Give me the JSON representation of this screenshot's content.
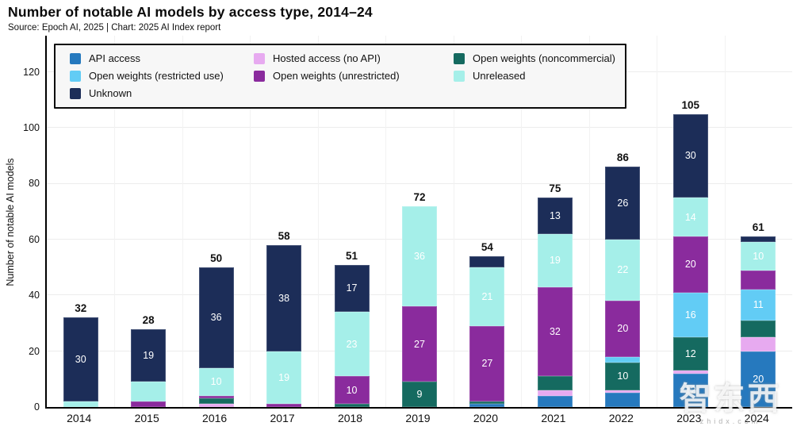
{
  "header": {
    "title": "Number of notable AI models by access type, 2014–24",
    "source": "Source: Epoch AI, 2025 | Chart: 2025 AI Index report"
  },
  "watermark": {
    "main": "智东西",
    "sub": "zhidx.com"
  },
  "chart_data": {
    "type": "bar",
    "variant": "stacked",
    "title": "Number of notable AI models by access type, 2014–24",
    "source": "Source: Epoch AI, 2025 | Chart: 2025 AI Index report",
    "ylabel": "Number of notable AI models",
    "xlabel": "",
    "ylim": [
      0,
      133
    ],
    "yticks": [
      0,
      20,
      40,
      60,
      80,
      100,
      120
    ],
    "grid": true,
    "legend_position": "top",
    "categories": [
      "2014",
      "2015",
      "2016",
      "2017",
      "2018",
      "2019",
      "2020",
      "2021",
      "2022",
      "2023",
      "2024"
    ],
    "series": [
      {
        "name": "API access",
        "color": "#2679be",
        "values": [
          0,
          0,
          0,
          0,
          0,
          0,
          1,
          4,
          5,
          12,
          20
        ]
      },
      {
        "name": "Hosted access (no API)",
        "color": "#e7aaf0",
        "values": [
          0,
          0,
          1,
          0,
          0,
          0,
          0,
          2,
          1,
          1,
          5
        ]
      },
      {
        "name": "Open weights (noncommercial)",
        "color": "#156a60",
        "values": [
          0,
          0,
          2,
          0,
          1,
          9,
          1,
          5,
          10,
          12,
          6
        ]
      },
      {
        "name": "Open weights (restricted use)",
        "color": "#62ccf5",
        "values": [
          0,
          0,
          0,
          0,
          0,
          0,
          0,
          0,
          2,
          16,
          11
        ]
      },
      {
        "name": "Open weights (unrestricted)",
        "color": "#8a2b9d",
        "values": [
          0,
          2,
          1,
          1,
          10,
          27,
          27,
          32,
          20,
          20,
          7
        ]
      },
      {
        "name": "Unreleased",
        "color": "#a5efe9",
        "values": [
          2,
          7,
          10,
          19,
          23,
          36,
          21,
          19,
          22,
          14,
          10
        ]
      },
      {
        "name": "Unknown",
        "color": "#1c2d58",
        "values": [
          30,
          19,
          36,
          38,
          17,
          0,
          4,
          13,
          26,
          30,
          2
        ]
      }
    ],
    "totals": [
      32,
      28,
      50,
      58,
      51,
      72,
      54,
      75,
      86,
      105,
      61
    ],
    "segment_label_min_value": 9,
    "axis_color": "#000000",
    "grid_color": "#ececec"
  }
}
